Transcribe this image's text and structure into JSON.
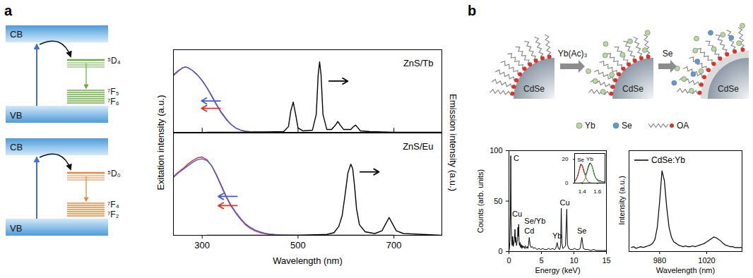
{
  "panel_labels": [
    "a",
    "b"
  ],
  "energy_diagrams": [
    {
      "cb": "CB",
      "vb": "VB",
      "levels": [
        "⁵D₄",
        "⁷F₅",
        "⁷F₆"
      ],
      "color": "#6aac3f"
    },
    {
      "cb": "CB",
      "vb": "VB",
      "levels": [
        "⁵D₀",
        "⁷F₄",
        "⁷F₂"
      ],
      "color": "#e8843c"
    }
  ],
  "schematic": {
    "particles": [
      "CdSe",
      "CdSe",
      "CdSe"
    ],
    "steps": [
      "Yb(Ac)₃",
      "Se"
    ],
    "legend": [
      {
        "label": "Yb",
        "color": "#b5d99c"
      },
      {
        "label": "Se",
        "color": "#5b9bd5"
      },
      {
        "label": "OA"
      }
    ]
  },
  "chart_data": [
    {
      "type": "line",
      "title": "ZnS/Tb",
      "ylabel": "Exitation intensity (a.u.)",
      "y2label": "Emission intensity (a.u.)",
      "xlim": [
        240,
        800
      ],
      "xticks": [
        300,
        500,
        700
      ],
      "ylim": [
        0,
        1.15
      ],
      "y2lim": [
        0,
        1.15
      ],
      "tick_labels": false,
      "series": [
        {
          "color": "#e0322b",
          "x": [
            240,
            250,
            260,
            265,
            270,
            280,
            290,
            300,
            310,
            320,
            330,
            340,
            350,
            360,
            370,
            380,
            390,
            400,
            420,
            440
          ],
          "values": [
            0.79,
            0.85,
            0.9,
            0.91,
            0.9,
            0.86,
            0.8,
            0.72,
            0.62,
            0.51,
            0.39,
            0.28,
            0.19,
            0.11,
            0.06,
            0.03,
            0.015,
            0.008,
            0.003,
            0
          ]
        },
        {
          "color": "#3d5fd6",
          "x": [
            240,
            250,
            260,
            265,
            270,
            280,
            290,
            300,
            310,
            320,
            330,
            340,
            350,
            360,
            370,
            380,
            390,
            400,
            420,
            440
          ],
          "values": [
            0.8,
            0.86,
            0.9,
            0.91,
            0.9,
            0.86,
            0.8,
            0.72,
            0.62,
            0.5,
            0.38,
            0.27,
            0.18,
            0.11,
            0.06,
            0.03,
            0.015,
            0.008,
            0.003,
            0
          ]
        },
        {
          "color": "#000000",
          "axis": "y2",
          "x": [
            310,
            400,
            470,
            480,
            485,
            490,
            495,
            500,
            510,
            530,
            538,
            542,
            545,
            548,
            552,
            560,
            570,
            578,
            583,
            588,
            595,
            610,
            616,
            620,
            624,
            630,
            650,
            700,
            800
          ],
          "values": [
            0,
            0,
            0.01,
            0.08,
            0.3,
            0.42,
            0.25,
            0.06,
            0.02,
            0.03,
            0.25,
            0.8,
            0.98,
            0.8,
            0.25,
            0.04,
            0.04,
            0.1,
            0.15,
            0.1,
            0.04,
            0.04,
            0.08,
            0.1,
            0.07,
            0.02,
            0.01,
            0,
            0
          ]
        }
      ]
    },
    {
      "type": "line",
      "title": "ZnS/Eu",
      "xlabel": "Wavelength (nm)",
      "xlim": [
        240,
        800
      ],
      "xticks": [
        300,
        500,
        700
      ],
      "ylim": [
        0,
        1.15
      ],
      "y2lim": [
        0,
        1.15
      ],
      "tick_labels": "x",
      "series": [
        {
          "color": "#e0322b",
          "x": [
            240,
            250,
            260,
            270,
            280,
            290,
            300,
            310,
            320,
            330,
            340,
            350,
            360,
            370,
            380,
            390,
            400,
            410,
            420,
            430,
            440,
            460,
            480,
            500,
            700
          ],
          "values": [
            0.66,
            0.71,
            0.75,
            0.8,
            0.84,
            0.87,
            0.88,
            0.85,
            0.78,
            0.67,
            0.55,
            0.43,
            0.33,
            0.25,
            0.18,
            0.12,
            0.08,
            0.05,
            0.03,
            0.02,
            0.01,
            0.004,
            0.001,
            0,
            0
          ]
        },
        {
          "color": "#3d5fd6",
          "x": [
            240,
            250,
            260,
            270,
            280,
            290,
            300,
            310,
            320,
            330,
            340,
            350,
            360,
            370,
            380,
            390,
            400,
            410,
            420,
            430,
            440,
            460,
            480,
            500,
            700
          ],
          "values": [
            0.65,
            0.7,
            0.74,
            0.78,
            0.82,
            0.85,
            0.86,
            0.84,
            0.78,
            0.68,
            0.56,
            0.44,
            0.34,
            0.26,
            0.19,
            0.13,
            0.09,
            0.06,
            0.04,
            0.025,
            0.015,
            0.005,
            0.002,
            0,
            0
          ]
        },
        {
          "color": "#000000",
          "axis": "y2",
          "x": [
            310,
            400,
            500,
            560,
            575,
            585,
            592,
            598,
            604,
            610,
            614,
            618,
            622,
            628,
            640,
            660,
            675,
            685,
            690,
            695,
            705,
            720,
            760,
            800
          ],
          "values": [
            0,
            0,
            0,
            0.01,
            0.03,
            0.1,
            0.22,
            0.45,
            0.7,
            0.8,
            0.75,
            0.55,
            0.3,
            0.12,
            0.04,
            0.02,
            0.05,
            0.15,
            0.2,
            0.15,
            0.05,
            0.02,
            0.01,
            0
          ]
        }
      ]
    },
    {
      "type": "line",
      "xlabel": "Energy (keV)",
      "ylabel": "Counts (arb. units)",
      "xlim": [
        0,
        15
      ],
      "xticks": [
        0,
        5,
        10,
        15
      ],
      "ylim": [
        0,
        100
      ],
      "yticks": [
        0,
        50,
        100
      ],
      "series": [
        {
          "color": "#000000",
          "x": [
            0.05,
            0.15,
            0.22,
            0.28,
            0.34,
            0.42,
            0.5,
            0.58,
            0.66,
            0.75,
            0.85,
            0.93,
            1.0,
            1.08,
            1.16,
            1.25,
            1.32,
            1.38,
            1.44,
            1.5,
            1.56,
            1.62,
            1.7,
            1.8,
            1.9,
            2.0,
            2.1,
            2.2,
            2.3,
            2.4,
            2.5,
            2.6,
            2.7,
            2.8,
            2.9,
            3.0,
            3.13,
            3.25,
            3.4,
            3.6,
            3.8,
            4.0,
            4.3,
            4.6,
            4.9,
            5.2,
            5.5,
            5.8,
            6.1,
            6.4,
            6.7,
            7.0,
            7.2,
            7.42,
            7.6,
            7.8,
            7.95,
            8.05,
            8.15,
            8.3,
            8.5,
            8.7,
            8.9,
            9.0,
            9.2,
            9.5,
            9.8,
            10.1,
            10.4,
            10.7,
            10.95,
            11.22,
            11.45,
            11.8,
            12.2,
            12.6,
            13.0,
            13.5,
            14.0,
            14.5,
            14.95
          ],
          "values": [
            2,
            10,
            40,
            95,
            30,
            12,
            6,
            15,
            5,
            8,
            12,
            22,
            9,
            14,
            6,
            10,
            12,
            24,
            15,
            27,
            10,
            6,
            9,
            4,
            7,
            3,
            6,
            4,
            5,
            3,
            6,
            3,
            4,
            5,
            3,
            6,
            14,
            7,
            4,
            5,
            3,
            4,
            2,
            3,
            2,
            3,
            2,
            2,
            3,
            2,
            3,
            2,
            3,
            9,
            3,
            2,
            6,
            43,
            8,
            3,
            4,
            6,
            42,
            7,
            3,
            2,
            2,
            3,
            2,
            2,
            3,
            14,
            3,
            2,
            2,
            1,
            2,
            1,
            1,
            1,
            1
          ]
        }
      ],
      "annotations": [
        {
          "text": "C",
          "x": 0.28
        },
        {
          "text": "Cu",
          "x": 0.93
        },
        {
          "text": "Se/Yb",
          "x": 1.5
        },
        {
          "text": "Cd",
          "x": 3.13
        },
        {
          "text": "Yb",
          "x": 7.42
        },
        {
          "text": "Cu",
          "x": 8.05
        },
        {
          "text": "Se",
          "x": 11.22
        }
      ]
    },
    {
      "type": "line",
      "xlim": [
        1.3,
        1.7
      ],
      "xticks": [
        1.4,
        1.6
      ],
      "ylim": [
        0,
        25
      ],
      "yticks": [
        0,
        20
      ],
      "x": [
        1.3,
        1.32,
        1.34,
        1.36,
        1.38,
        1.4,
        1.42,
        1.44,
        1.46,
        1.48,
        1.5,
        1.52,
        1.54,
        1.56,
        1.58,
        1.6,
        1.62,
        1.64,
        1.66,
        1.68,
        1.7
      ],
      "series": [
        {
          "color": "#000000",
          "values": [
            2,
            3,
            6,
            11,
            16,
            15,
            10,
            7,
            9,
            14,
            17,
            16,
            12,
            7,
            4,
            3,
            2,
            2,
            1,
            1,
            1
          ]
        },
        {
          "color": "#e8312a",
          "values": [
            1,
            3,
            6,
            11,
            15,
            15,
            11,
            6,
            3,
            1,
            0.5,
            0,
            0,
            0,
            0,
            0,
            0,
            0,
            0,
            0,
            0
          ]
        },
        {
          "color": "#3aa845",
          "values": [
            0,
            0,
            0,
            0,
            0.2,
            0.6,
            1.5,
            4,
            8,
            13,
            16,
            16,
            12,
            7,
            4,
            2,
            1,
            0.4,
            0.1,
            0,
            0
          ]
        }
      ],
      "annotations": [
        {
          "text": "Se",
          "x": 1.38
        },
        {
          "text": "Yb",
          "x": 1.5
        }
      ]
    },
    {
      "type": "line",
      "xlabel": "Wavelength (nm)",
      "ylabel": "Intensity (a.u.)",
      "legend": "top-left",
      "xlim": [
        954,
        1050
      ],
      "xticks": [
        980,
        1020
      ],
      "ylim": [
        0,
        1.25
      ],
      "tick_labels": "x",
      "x": [
        956,
        958,
        960,
        962,
        964,
        966,
        968,
        970,
        972,
        974,
        976,
        978,
        980,
        982,
        984,
        986,
        988,
        990,
        992,
        994,
        996,
        998,
        1000,
        1002,
        1004,
        1006,
        1008,
        1010,
        1012,
        1014,
        1016,
        1018,
        1020,
        1022,
        1024,
        1026,
        1028,
        1030,
        1032,
        1034,
        1036,
        1038,
        1040,
        1042,
        1044,
        1046,
        1048,
        1050
      ],
      "series": [
        {
          "name": "CdSe:Yb",
          "color": "#000000",
          "values": [
            0.05,
            0.06,
            0.04,
            0.05,
            0.06,
            0.05,
            0.06,
            0.07,
            0.08,
            0.1,
            0.15,
            0.3,
            0.62,
            1.0,
            0.88,
            0.55,
            0.3,
            0.18,
            0.12,
            0.1,
            0.08,
            0.07,
            0.06,
            0.07,
            0.06,
            0.06,
            0.07,
            0.06,
            0.07,
            0.08,
            0.09,
            0.1,
            0.12,
            0.14,
            0.16,
            0.18,
            0.17,
            0.15,
            0.13,
            0.1,
            0.08,
            0.07,
            0.06,
            0.06,
            0.05,
            0.05,
            0.05,
            0.05
          ]
        }
      ]
    }
  ]
}
